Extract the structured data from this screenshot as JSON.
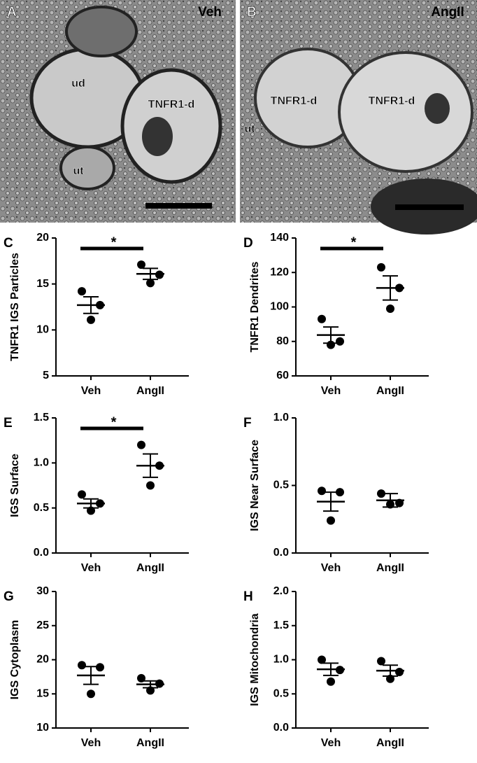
{
  "micrographs": [
    {
      "panel": "A",
      "condition": "Veh",
      "labels": [
        "ud",
        "TNFR1-d",
        "ut"
      ]
    },
    {
      "panel": "B",
      "condition": "AngII",
      "labels": [
        "TNFR1-d",
        "TNFR1-d",
        "ut"
      ]
    }
  ],
  "chart_data": [
    {
      "type": "dotplot",
      "panel": "C",
      "ylabel": "TNFR1 IGS Particles",
      "categories": [
        "Veh",
        "AngII"
      ],
      "points": [
        [
          14.2,
          12.7,
          11.1
        ],
        [
          17.1,
          16.0,
          15.1
        ]
      ],
      "means": [
        12.7,
        16.1
      ],
      "sems": [
        0.9,
        0.6
      ],
      "ylim": [
        5,
        20
      ],
      "yticks": [
        5,
        10,
        15,
        20
      ],
      "significance": "*",
      "color": "#000000"
    },
    {
      "type": "dotplot",
      "panel": "D",
      "ylabel": "TNFR1 Dendrites",
      "categories": [
        "Veh",
        "AngII"
      ],
      "points": [
        [
          93,
          80,
          78
        ],
        [
          123,
          111,
          99
        ]
      ],
      "means": [
        83.7,
        111
      ],
      "sems": [
        4.7,
        7
      ],
      "ylim": [
        60,
        140
      ],
      "yticks": [
        60,
        80,
        100,
        120,
        140
      ],
      "significance": "*",
      "color": "#000000"
    },
    {
      "type": "dotplot",
      "panel": "E",
      "ylabel": "IGS Surface",
      "categories": [
        "Veh",
        "AngII"
      ],
      "points": [
        [
          0.65,
          0.55,
          0.47
        ],
        [
          1.2,
          0.97,
          0.75
        ]
      ],
      "means": [
        0.55,
        0.97
      ],
      "sems": [
        0.05,
        0.13
      ],
      "ylim": [
        0,
        1.5
      ],
      "yticks": [
        {
          "value": 0,
          "label": "0.0"
        },
        0.5,
        {
          "value": 1,
          "label": "1.0"
        },
        1.5
      ],
      "significance": "*",
      "color": "#000000"
    },
    {
      "type": "dotplot",
      "panel": "F",
      "ylabel": "IGS Near Surface",
      "categories": [
        "Veh",
        "AngII"
      ],
      "points": [
        [
          0.46,
          0.45,
          0.24
        ],
        [
          0.44,
          0.37,
          0.36
        ]
      ],
      "means": [
        0.38,
        0.39
      ],
      "sems": [
        0.07,
        0.05
      ],
      "ylim": [
        0,
        1
      ],
      "yticks": [
        {
          "value": 0,
          "label": "0.0"
        },
        0.5,
        {
          "value": 1,
          "label": "1.0"
        }
      ],
      "color": "#000000"
    },
    {
      "type": "dotplot",
      "panel": "G",
      "ylabel": "IGS Cytoplasm",
      "categories": [
        "Veh",
        "AngII"
      ],
      "points": [
        [
          19.2,
          18.9,
          15.0
        ],
        [
          17.3,
          16.5,
          15.5
        ]
      ],
      "means": [
        17.7,
        16.4
      ],
      "sems": [
        1.3,
        0.5
      ],
      "ylim": [
        10,
        30
      ],
      "yticks": [
        10,
        15,
        20,
        25,
        30
      ],
      "color": "#000000"
    },
    {
      "type": "dotplot",
      "panel": "H",
      "ylabel": "IGS Mitochondria",
      "categories": [
        "Veh",
        "AngII"
      ],
      "points": [
        [
          1.0,
          0.85,
          0.68
        ],
        [
          0.98,
          0.82,
          0.72
        ]
      ],
      "means": [
        0.86,
        0.84
      ],
      "sems": [
        0.09,
        0.08
      ],
      "ylim": [
        0,
        2
      ],
      "yticks": [
        {
          "value": 0,
          "label": "0.0"
        },
        0.5,
        {
          "value": 1,
          "label": "1.0"
        },
        1.5,
        {
          "value": 2,
          "label": "2.0"
        }
      ],
      "color": "#000000"
    }
  ]
}
